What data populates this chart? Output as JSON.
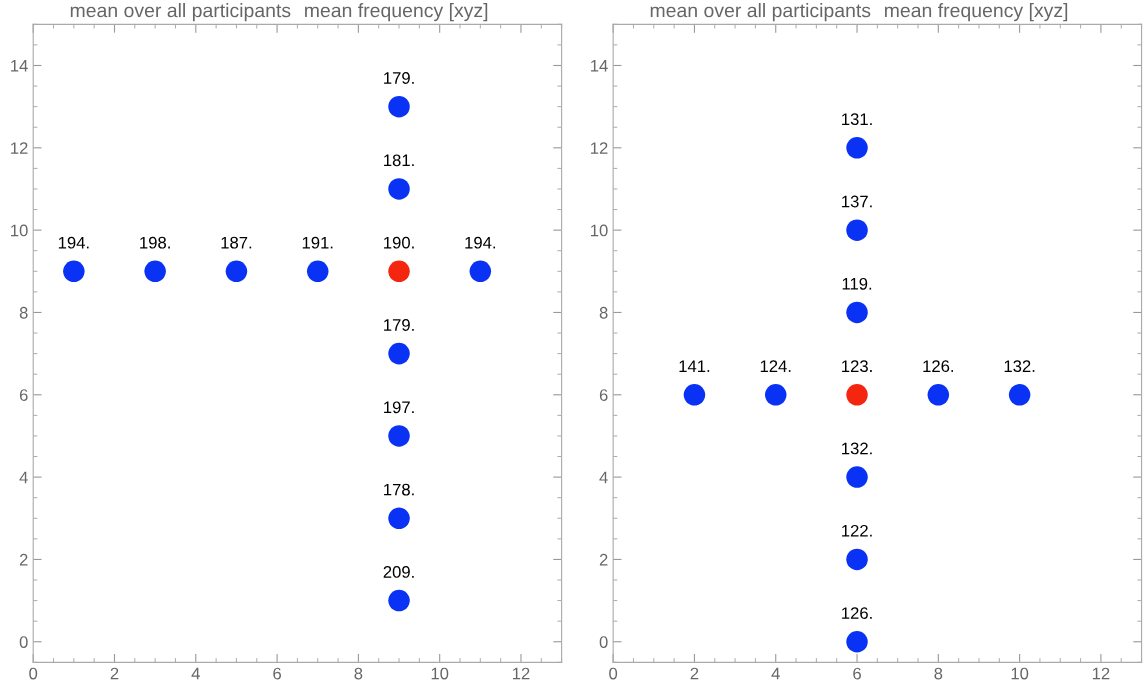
{
  "chart_data": [
    {
      "type": "scatter",
      "title": "mean over all participants",
      "subtitle": "mean frequency [xyz]",
      "marker": "circle",
      "grid": false,
      "x": [
        1,
        3,
        5,
        7,
        9,
        11,
        9,
        9,
        9,
        9,
        9,
        9
      ],
      "values": [
        9,
        9,
        9,
        9,
        9,
        9,
        13,
        11,
        7,
        5,
        3,
        1
      ],
      "colors": [
        "#0a32f5",
        "#0a32f5",
        "#0a32f5",
        "#0a32f5",
        "#f5260f",
        "#0a32f5",
        "#0a32f5",
        "#0a32f5",
        "#0a32f5",
        "#0a32f5",
        "#0a32f5",
        "#0a32f5"
      ],
      "annotations": [
        {
          "text": "194.",
          "x": 1,
          "y": 9
        },
        {
          "text": "198.",
          "x": 3,
          "y": 9
        },
        {
          "text": "187.",
          "x": 5,
          "y": 9
        },
        {
          "text": "191.",
          "x": 7,
          "y": 9
        },
        {
          "text": "190.",
          "x": 9,
          "y": 9
        },
        {
          "text": "194.",
          "x": 11,
          "y": 9
        },
        {
          "text": "179.",
          "x": 9,
          "y": 13
        },
        {
          "text": "181.",
          "x": 9,
          "y": 11
        },
        {
          "text": "179.",
          "x": 9,
          "y": 7
        },
        {
          "text": "197.",
          "x": 9,
          "y": 5
        },
        {
          "text": "178.",
          "x": 9,
          "y": 3
        },
        {
          "text": "209.",
          "x": 9,
          "y": 1
        }
      ],
      "xlim": [
        0,
        13
      ],
      "ylim": [
        -0.5,
        15
      ],
      "xticks": [
        0,
        2,
        4,
        6,
        8,
        10,
        12
      ],
      "yticks": [
        0,
        2,
        4,
        6,
        8,
        10,
        12,
        14
      ]
    },
    {
      "type": "scatter",
      "title": "mean over all participants",
      "subtitle": "mean frequency [xyz]",
      "marker": "circle",
      "grid": false,
      "x": [
        2,
        4,
        6,
        8,
        10,
        6,
        6,
        6,
        6,
        6,
        6
      ],
      "values": [
        6,
        6,
        6,
        6,
        6,
        12,
        10,
        8,
        4,
        2,
        0
      ],
      "colors": [
        "#0a32f5",
        "#0a32f5",
        "#f5260f",
        "#0a32f5",
        "#0a32f5",
        "#0a32f5",
        "#0a32f5",
        "#0a32f5",
        "#0a32f5",
        "#0a32f5",
        "#0a32f5"
      ],
      "annotations": [
        {
          "text": "141.",
          "x": 2,
          "y": 6
        },
        {
          "text": "124.",
          "x": 4,
          "y": 6
        },
        {
          "text": "123.",
          "x": 6,
          "y": 6
        },
        {
          "text": "126.",
          "x": 8,
          "y": 6
        },
        {
          "text": "132.",
          "x": 10,
          "y": 6
        },
        {
          "text": "131.",
          "x": 6,
          "y": 12
        },
        {
          "text": "137.",
          "x": 6,
          "y": 10
        },
        {
          "text": "119.",
          "x": 6,
          "y": 8
        },
        {
          "text": "132.",
          "x": 6,
          "y": 4
        },
        {
          "text": "122.",
          "x": 6,
          "y": 2
        },
        {
          "text": "126.",
          "x": 6,
          "y": 0
        }
      ],
      "xlim": [
        0,
        13
      ],
      "ylim": [
        -0.5,
        15
      ],
      "xticks": [
        0,
        2,
        4,
        6,
        8,
        10,
        12
      ],
      "yticks": [
        0,
        2,
        4,
        6,
        8,
        10,
        12,
        14
      ]
    }
  ]
}
